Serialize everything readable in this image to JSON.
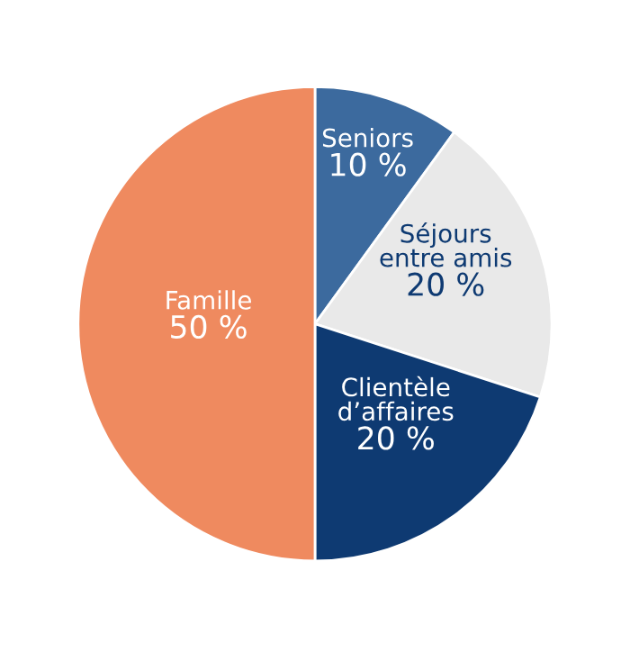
{
  "chart_data": {
    "type": "pie",
    "categories": [
      "Seniors",
      "Séjours\nentre amis",
      "Clientèle\nd’affaires",
      "Famille"
    ],
    "values": [
      10,
      20,
      20,
      50
    ],
    "value_labels": [
      "10 %",
      "20 %",
      "20 %",
      "50 %"
    ],
    "colors": [
      "#3c6a9e",
      "#e9e9e9",
      "#0e3a72",
      "#ef8a5f"
    ]
  }
}
